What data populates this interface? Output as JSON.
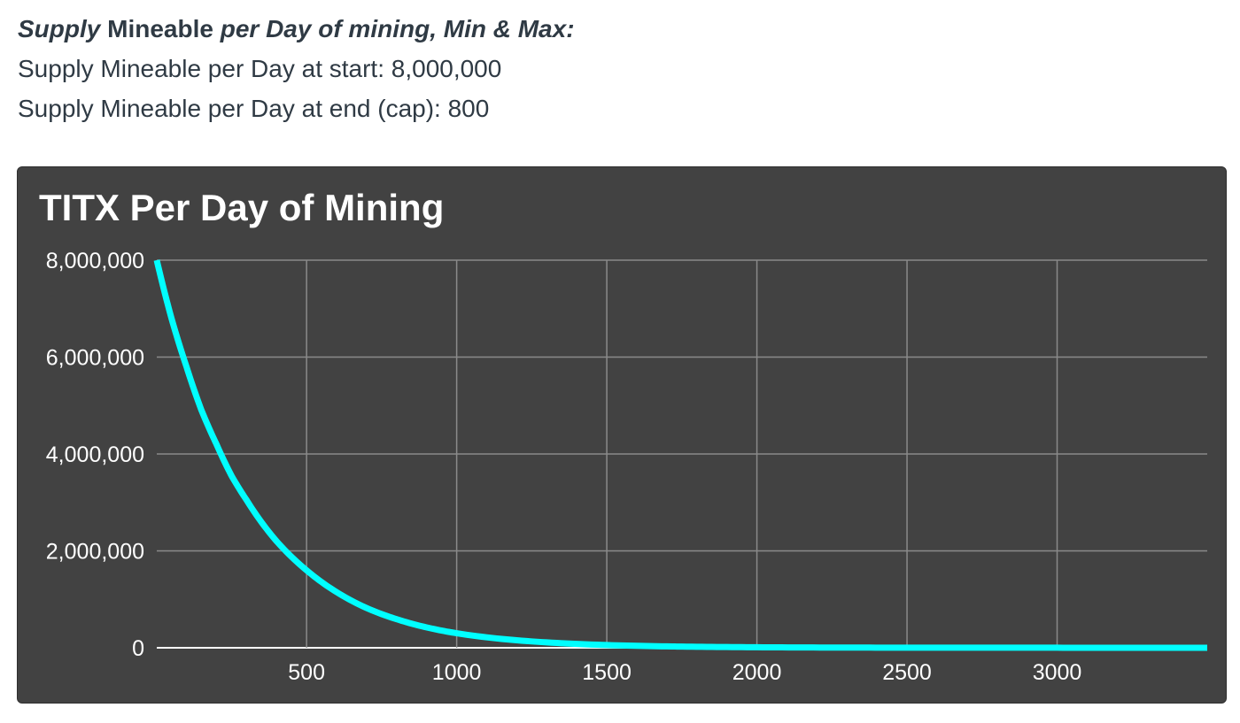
{
  "intro": {
    "heading_italic": "Supply",
    "heading_rest": " Mineable ",
    "heading_italic2": "per Day of mining, Min & Max:",
    "start_line": "Supply Mineable per Day at start: 8,000,000",
    "end_line": "Supply Mineable per Day at end (cap): 800"
  },
  "colors": {
    "card_background": "#424242",
    "grid": "#8a8a8a",
    "series": "#00ffff",
    "text": "#ffffff"
  },
  "chart_data": {
    "type": "line",
    "title": "TITX Per Day of Mining",
    "xlabel": "",
    "ylabel": "",
    "xlim": [
      1,
      3500
    ],
    "ylim": [
      0,
      8000000
    ],
    "x_ticks": [
      500,
      1000,
      1500,
      2000,
      2500,
      3000
    ],
    "x_tick_labels": [
      "500",
      "1000",
      "1500",
      "2000",
      "2500",
      "3000"
    ],
    "y_ticks": [
      0,
      2000000,
      4000000,
      6000000,
      8000000
    ],
    "y_tick_labels": [
      "0",
      "2,000,000",
      "4,000,000",
      "6,000,000",
      "8,000,000"
    ],
    "grid": true,
    "legend": "none",
    "series": [
      {
        "x": [
          1,
          50,
          100,
          150,
          200,
          250,
          300,
          400,
          500,
          600,
          700,
          800,
          900,
          1000,
          1200,
          1400,
          1600,
          1800,
          2000,
          2250,
          2500,
          2750,
          3000,
          3250,
          3500
        ],
        "y": [
          8000000,
          6800000,
          5800000,
          4900000,
          4200000,
          3550000,
          3050000,
          2200000,
          1600000,
          1150000,
          820000,
          590000,
          420000,
          300000,
          155000,
          80000,
          40000,
          21000,
          11000,
          5000,
          2400,
          1800,
          1200,
          900,
          800
        ]
      }
    ]
  }
}
